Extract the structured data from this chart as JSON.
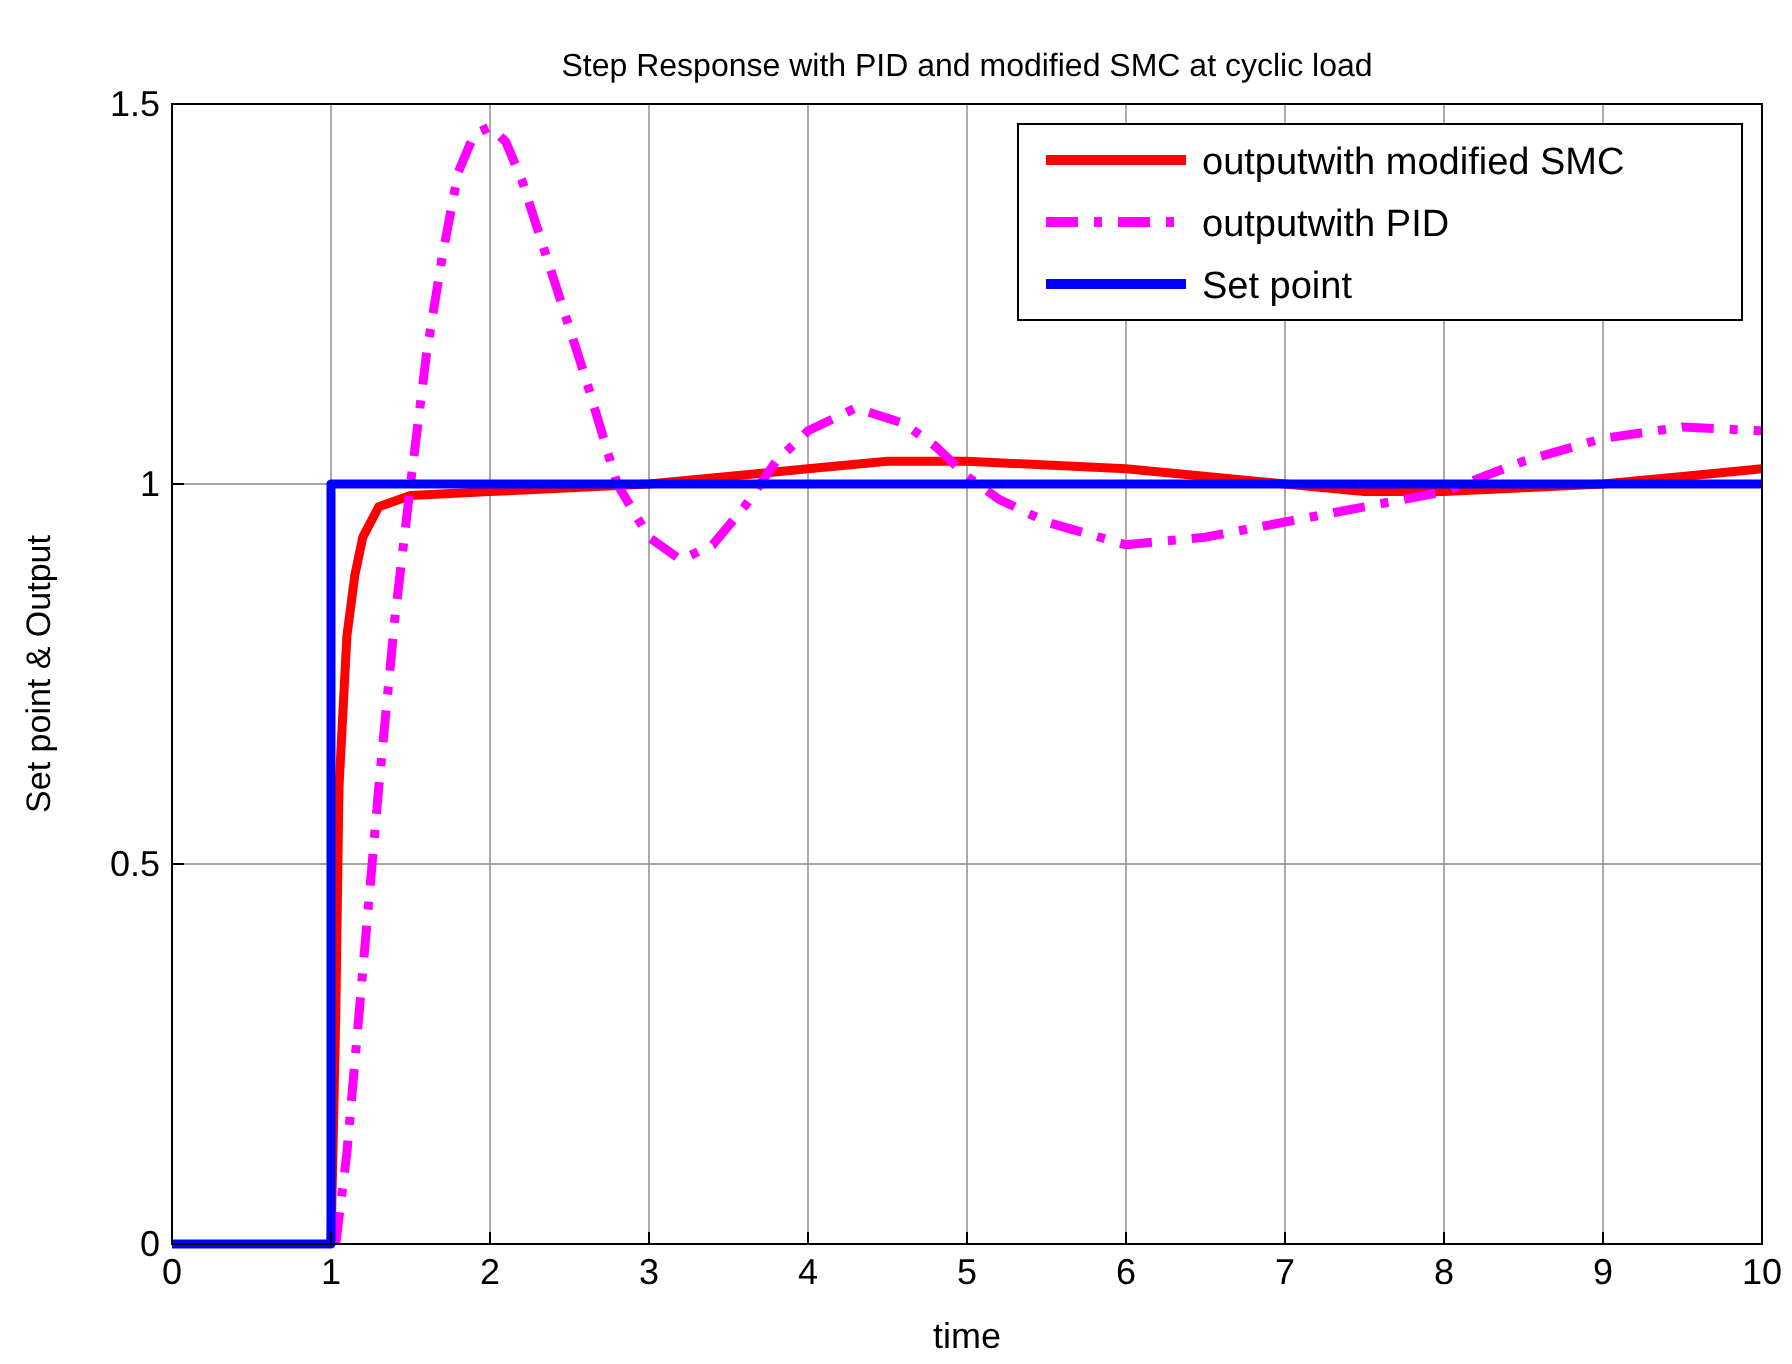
{
  "chart_data": {
    "type": "line",
    "title": "Step Response with PID and modified SMC at cyclic load",
    "xlabel": "time",
    "ylabel": "Set point & Output",
    "xlim": [
      0,
      10
    ],
    "ylim": [
      0,
      1.5
    ],
    "xticks": [
      0,
      1,
      2,
      3,
      4,
      5,
      6,
      7,
      8,
      9,
      10
    ],
    "yticks": [
      0,
      0.5,
      1,
      1.5
    ],
    "grid": true,
    "legend": "top right",
    "marker": "none",
    "series": [
      {
        "name": "outputwith modified SMC",
        "color": "#ff0000",
        "line_style": "solid",
        "x": [
          1,
          1.03,
          1.05,
          1.1,
          1.15,
          1.2,
          1.3,
          1.5,
          2,
          3,
          4,
          4.5,
          5,
          6,
          7,
          7.5,
          8,
          8.5,
          9,
          9.5,
          10
        ],
        "values": [
          0,
          0.3,
          0.6,
          0.8,
          0.88,
          0.93,
          0.97,
          0.985,
          0.99,
          1,
          1.02,
          1.03,
          1.03,
          1.02,
          1,
          0.99,
          0.99,
          0.995,
          1,
          1.01,
          1.02
        ]
      },
      {
        "name": "outputwith PID",
        "color": "#ff00ff",
        "line_style": "dashed",
        "x": [
          1.03,
          1.1,
          1.2,
          1.3,
          1.4,
          1.5,
          1.6,
          1.7,
          1.8,
          1.9,
          2,
          2.1,
          2.2,
          2.4,
          2.6,
          2.8,
          3,
          3.2,
          3.4,
          3.6,
          3.8,
          4,
          4.3,
          4.6,
          4.8,
          5,
          5.2,
          5.5,
          6,
          6.5,
          7,
          7.5,
          8,
          8.5,
          9,
          9.5,
          10
        ],
        "values": [
          0,
          0.12,
          0.36,
          0.6,
          0.82,
          1,
          1.17,
          1.3,
          1.41,
          1.46,
          1.47,
          1.45,
          1.4,
          1.27,
          1.14,
          1,
          0.93,
          0.9,
          0.92,
          0.97,
          1.03,
          1.07,
          1.1,
          1.08,
          1.05,
          1.01,
          0.98,
          0.95,
          0.92,
          0.93,
          0.95,
          0.97,
          0.99,
          1.03,
          1.06,
          1.075,
          1.07
        ]
      },
      {
        "name": "Set point",
        "color": "#0000ff",
        "line_style": "solid",
        "x": [
          0,
          1,
          1,
          10
        ],
        "values": [
          0,
          0,
          1,
          1
        ]
      }
    ]
  }
}
